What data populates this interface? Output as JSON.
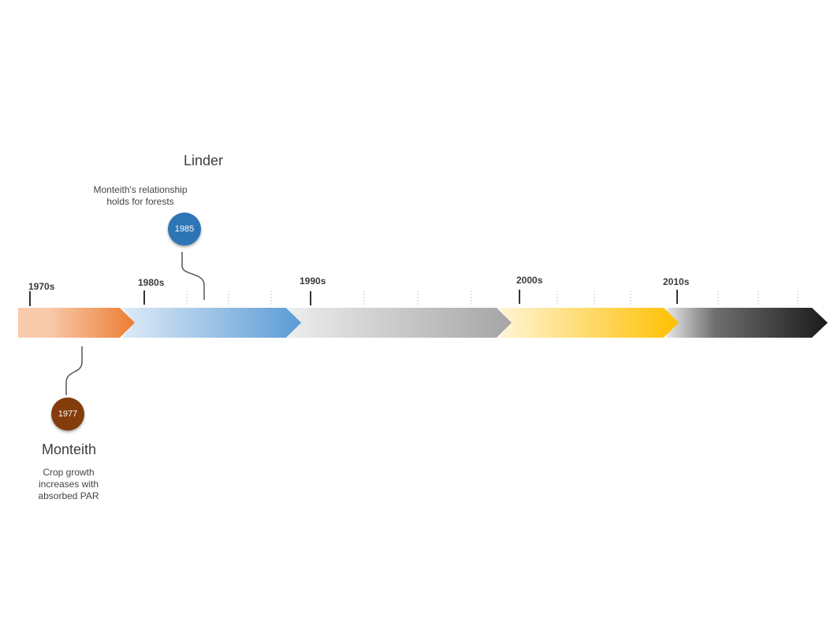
{
  "decades": [
    {
      "label": "1970s"
    },
    {
      "label": "1980s"
    },
    {
      "label": "1990s"
    },
    {
      "label": "2000s"
    },
    {
      "label": "2010s"
    }
  ],
  "events": {
    "linder": {
      "title": "Linder",
      "year": "1985",
      "description_lines": [
        "Monteith's relationship",
        "holds for forests"
      ],
      "color": "#2e75b6"
    },
    "monteith": {
      "title": "Monteith",
      "year": "1977",
      "description_lines": [
        "Crop growth",
        "increases with",
        "absorbed PAR"
      ],
      "color": "#843c0c"
    }
  },
  "segment_colors": [
    {
      "from": "#f8cbad",
      "to": "#ed7d31"
    },
    {
      "from": "#deebf7",
      "to": "#5b9bd5"
    },
    {
      "from": "#ededed",
      "to": "#a5a5a5"
    },
    {
      "from": "#fff2cc",
      "to": "#ffc000"
    },
    {
      "from": "#e7e6e6",
      "to": "#1a1a1a"
    }
  ]
}
